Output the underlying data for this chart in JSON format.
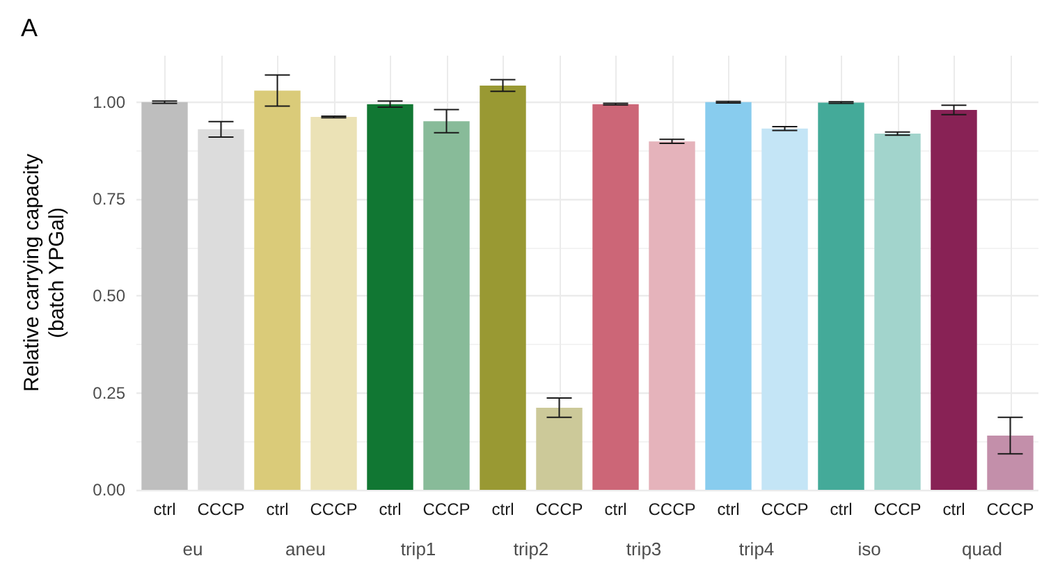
{
  "chart_data": [
    {
      "type": "bar",
      "title": "A",
      "ylabel": "Relative carrying capacity\n(batch YPGal)",
      "xlabel": "eu",
      "categories": [
        "ctrl",
        "CCCP"
      ],
      "values": [
        1.0,
        0.93
      ],
      "errors": [
        0.003,
        0.02
      ],
      "colors": [
        "#bebebe",
        "#dcdcdc"
      ],
      "ylim": [
        0,
        1.12
      ],
      "yticks": [
        {
          "value": 0,
          "label": "0.00"
        },
        {
          "value": 0.25,
          "label": "0.25"
        },
        {
          "value": 0.5,
          "label": "0.50"
        },
        {
          "value": 0.75,
          "label": "0.75"
        },
        {
          "value": 1,
          "label": "1.00"
        }
      ],
      "grid": true
    },
    {
      "type": "bar",
      "xlabel": "aneu",
      "categories": [
        "ctrl",
        "CCCP"
      ],
      "values": [
        1.03,
        0.962
      ],
      "errors": [
        0.04,
        0.002
      ],
      "colors": [
        "#dacb79",
        "#ebe2b6"
      ],
      "ylim": [
        0,
        1.12
      ],
      "yticks": [
        0,
        0.25,
        0.5,
        0.75,
        1
      ],
      "grid": true,
      "tick_labels": "x"
    },
    {
      "type": "bar",
      "xlabel": "trip1",
      "categories": [
        "ctrl",
        "CCCP"
      ],
      "values": [
        0.995,
        0.951
      ],
      "errors": [
        0.008,
        0.03
      ],
      "colors": [
        "#117733",
        "#88bb99"
      ],
      "ylim": [
        0,
        1.12
      ],
      "yticks": [
        0,
        0.25,
        0.5,
        0.75,
        1
      ],
      "grid": true,
      "tick_labels": "x"
    },
    {
      "type": "bar",
      "xlabel": "trip2",
      "categories": [
        "ctrl",
        "CCCP"
      ],
      "values": [
        1.043,
        0.212
      ],
      "errors": [
        0.015,
        0.025
      ],
      "colors": [
        "#999933",
        "#ccc999"
      ],
      "ylim": [
        0,
        1.12
      ],
      "yticks": [
        0,
        0.25,
        0.5,
        0.75,
        1
      ],
      "grid": true,
      "tick_labels": "x"
    },
    {
      "type": "bar",
      "xlabel": "trip3",
      "categories": [
        "ctrl",
        "CCCP"
      ],
      "values": [
        0.995,
        0.899
      ],
      "errors": [
        0.002,
        0.005
      ],
      "colors": [
        "#cc6677",
        "#e5b3bb"
      ],
      "ylim": [
        0,
        1.12
      ],
      "yticks": [
        0,
        0.25,
        0.5,
        0.75,
        1
      ],
      "grid": true,
      "tick_labels": "x"
    },
    {
      "type": "bar",
      "xlabel": "trip4",
      "categories": [
        "ctrl",
        "CCCP"
      ],
      "values": [
        1.0,
        0.932
      ],
      "errors": [
        0.002,
        0.005
      ],
      "colors": [
        "#88ccee",
        "#c4e5f6"
      ],
      "ylim": [
        0,
        1.12
      ],
      "yticks": [
        0,
        0.25,
        0.5,
        0.75,
        1
      ],
      "grid": true,
      "tick_labels": "x"
    },
    {
      "type": "bar",
      "xlabel": "iso",
      "categories": [
        "ctrl",
        "CCCP"
      ],
      "values": [
        0.999,
        0.919
      ],
      "errors": [
        0.002,
        0.004
      ],
      "colors": [
        "#44aa99",
        "#a2d4cc"
      ],
      "ylim": [
        0,
        1.12
      ],
      "yticks": [
        0,
        0.25,
        0.5,
        0.75,
        1
      ],
      "grid": true,
      "tick_labels": "x"
    },
    {
      "type": "bar",
      "xlabel": "quad",
      "categories": [
        "ctrl",
        "CCCP"
      ],
      "values": [
        0.98,
        0.14
      ],
      "errors": [
        0.012,
        0.047
      ],
      "colors": [
        "#882255",
        "#c38faa"
      ],
      "ylim": [
        0,
        1.12
      ],
      "yticks": [
        0,
        0.25,
        0.5,
        0.75,
        1
      ],
      "grid": true,
      "tick_labels": "x"
    }
  ]
}
